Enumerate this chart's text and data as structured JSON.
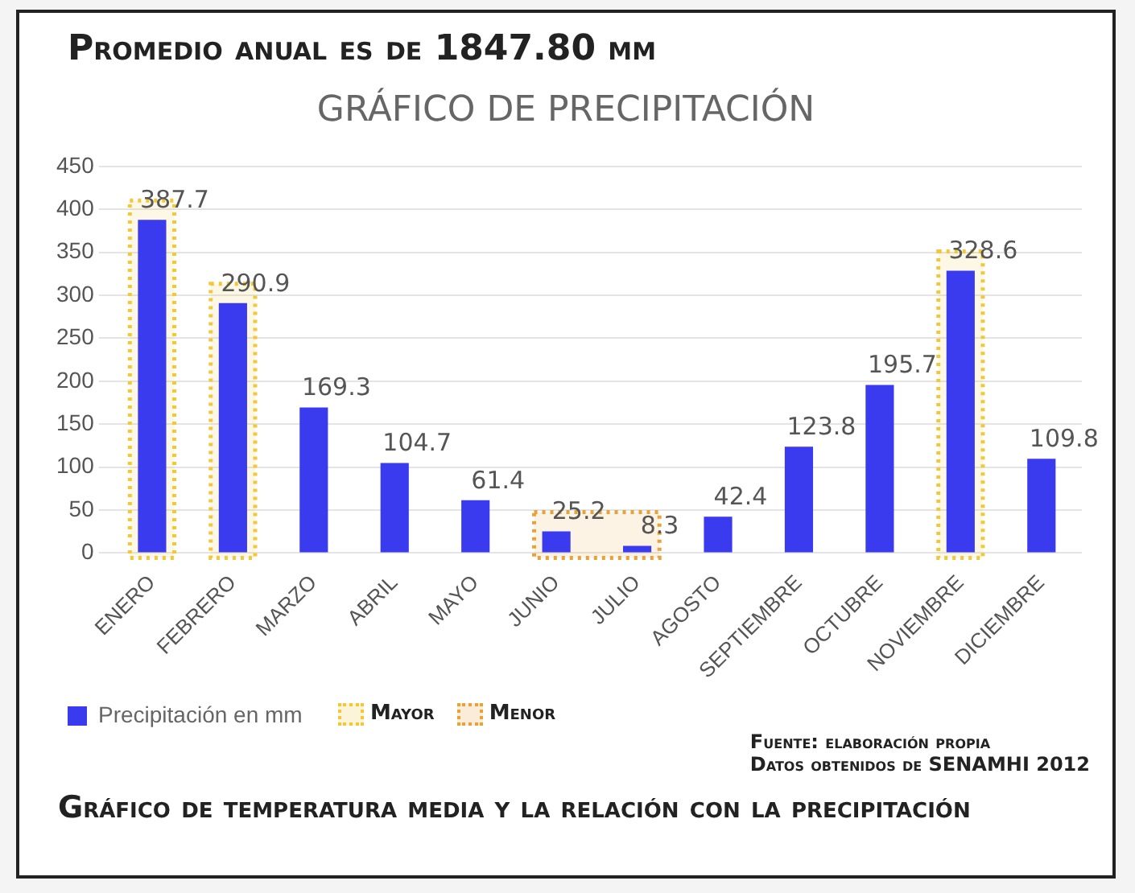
{
  "chart_data": {
    "type": "bar",
    "title": "GRÁFICO DE PRECIPITACIÓN",
    "categories": [
      "ENERO",
      "FEBRERO",
      "MARZO",
      "ABRIL",
      "MAYO",
      "JUNIO",
      "JULIO",
      "AGOSTO",
      "SEPTIEMBRE",
      "OCTUBRE",
      "NOVIEMBRE",
      "DICIEMBRE"
    ],
    "series": [
      {
        "name": "Precipitación en mm",
        "color": "#3a3aee",
        "values": [
          387.7,
          290.9,
          169.3,
          104.7,
          61.4,
          25.2,
          8.3,
          42.4,
          123.8,
          195.7,
          328.6,
          109.8
        ]
      }
    ],
    "ylim": [
      0,
      450
    ],
    "yticks": [
      0,
      50,
      100,
      150,
      200,
      250,
      300,
      350,
      400,
      450
    ],
    "grid": "y",
    "data_labels": true,
    "legend": "bottom",
    "bands": [
      {
        "axis": "x",
        "from": "ENERO",
        "to": "ENERO",
        "label": "Mayor",
        "color": "#f2c73a"
      },
      {
        "axis": "x",
        "from": "FEBRERO",
        "to": "FEBRERO",
        "color": "#f2c73a"
      },
      {
        "axis": "x",
        "from": "NOVIEMBRE",
        "to": "NOVIEMBRE",
        "color": "#f2c73a"
      },
      {
        "axis": "x",
        "from": "JUNIO",
        "to": "JULIO",
        "label": "Menor",
        "color": "#e8a23a"
      }
    ],
    "annotations": [
      "Promedio anual es de 1847.80 mm",
      "Fuente: elaboración propia",
      "Datos obtenidos de SENAMHI 2012",
      "Gráfico de temperatura media y la relación con la precipitación"
    ]
  }
}
